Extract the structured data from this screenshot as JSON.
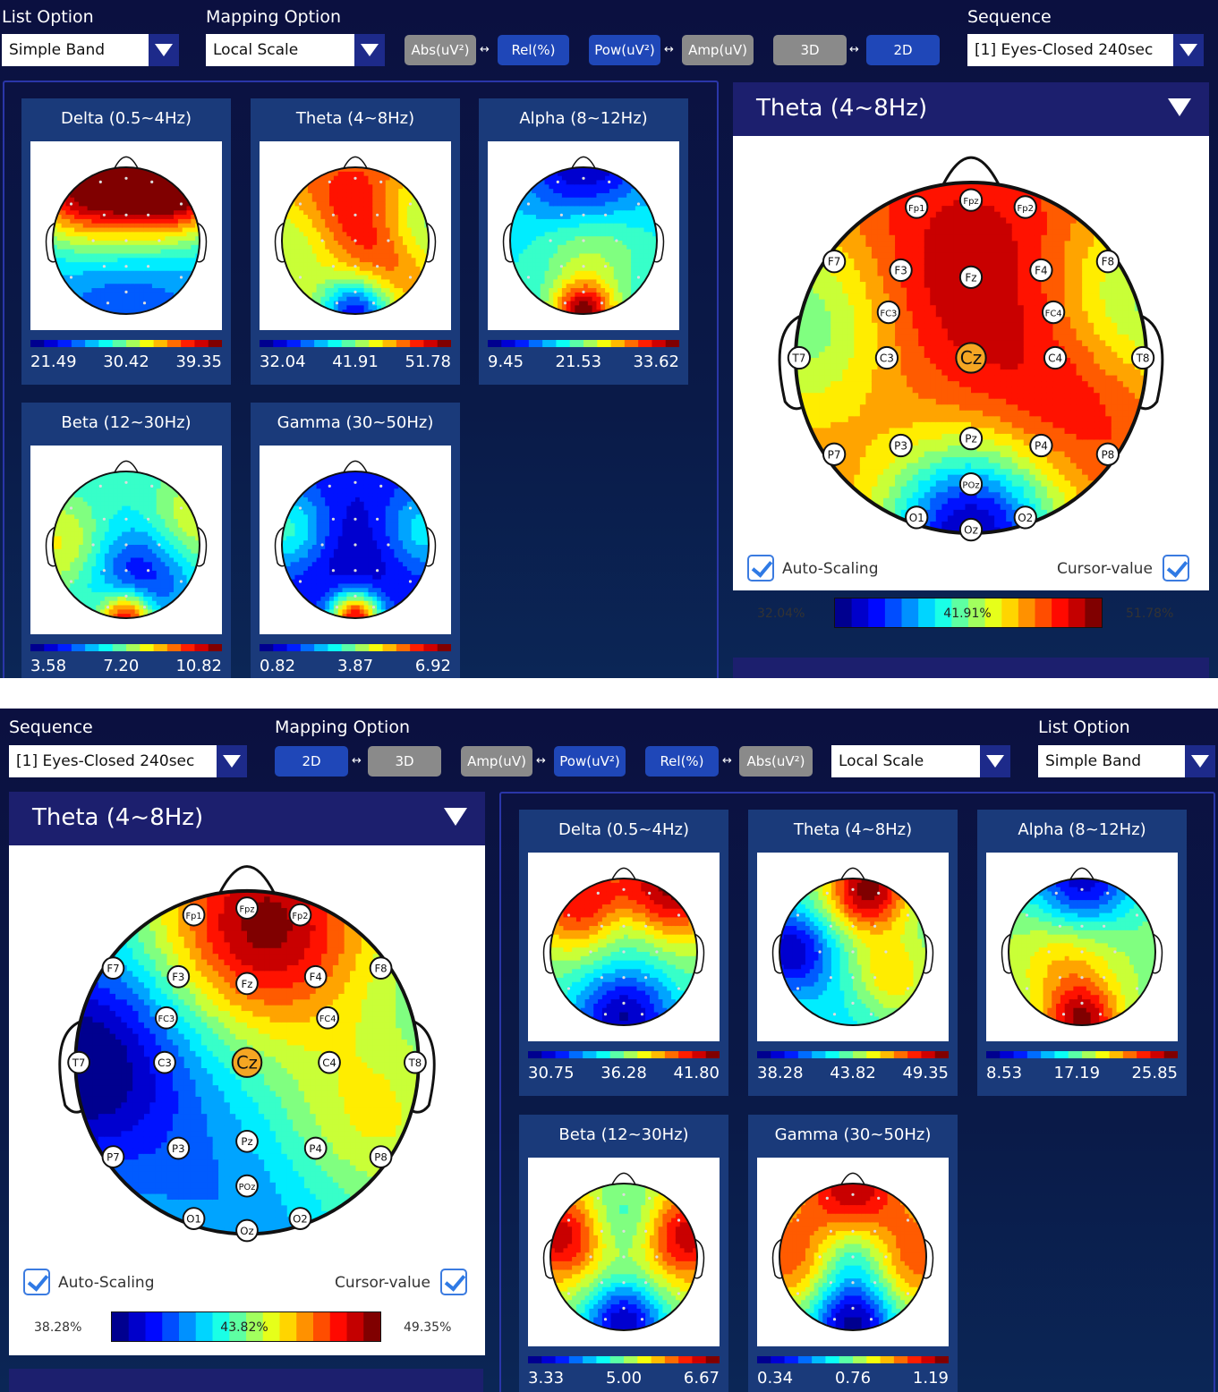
{
  "colors": {
    "panel_bg": "#0b1a4a",
    "toggle_on": "#1f47b8",
    "toggle_off": "#8a8a8a",
    "card_bg": "#1a3a7a",
    "big_header": "#1c1f6e",
    "jet": [
      "#00008f",
      "#0000ff",
      "#0080ff",
      "#00ffff",
      "#80ff80",
      "#ffff00",
      "#ff8000",
      "#ff0000",
      "#800000"
    ]
  },
  "screens": [
    {
      "labels": {
        "list_option": "List Option",
        "mapping_option": "Mapping Option",
        "sequence": "Sequence"
      },
      "list_option_value": "Simple Band",
      "mapping_option_value": "Local Scale",
      "sequence_value": "[1] Eyes-Closed 240sec",
      "toggles": {
        "abs": "Abs(uV²)",
        "rel": "Rel(%)",
        "pow": "Pow(uV²)",
        "amp": "Amp(uV)",
        "three_d": "3D",
        "two_d": "2D",
        "swap": "↔"
      },
      "bands": [
        {
          "name": "Delta (0.5~4Hz)",
          "min": "21.49",
          "mid": "30.42",
          "max": "39.35"
        },
        {
          "name": "Theta (4~8Hz)",
          "min": "32.04",
          "mid": "41.91",
          "max": "51.78"
        },
        {
          "name": "Alpha (8~12Hz)",
          "min": "9.45",
          "mid": "21.53",
          "max": "33.62"
        },
        {
          "name": "Beta (12~30Hz)",
          "min": "3.58",
          "mid": "7.20",
          "max": "10.82"
        },
        {
          "name": "Gamma (30~50Hz)",
          "min": "0.82",
          "mid": "3.87",
          "max": "6.92"
        }
      ],
      "detail": {
        "title": "Theta (4~8Hz)",
        "auto_scaling": "Auto-Scaling",
        "cursor_value": "Cursor-value",
        "min_pct": "32.04%",
        "cursor_pct": "41.91%",
        "max_pct": "51.78%",
        "center_electrode": "Cz"
      }
    },
    {
      "labels": {
        "list_option": "List Option",
        "mapping_option": "Mapping Option",
        "sequence": "Sequence"
      },
      "list_option_value": "Simple Band",
      "mapping_option_value": "Local Scale",
      "sequence_value": "[1] Eyes-Closed 240sec",
      "toggles": {
        "abs": "Abs(uV²)",
        "rel": "Rel(%)",
        "pow": "Pow(uV²)",
        "amp": "Amp(uV)",
        "three_d": "3D",
        "two_d": "2D",
        "swap": "↔"
      },
      "bands": [
        {
          "name": "Delta (0.5~4Hz)",
          "min": "30.75",
          "mid": "36.28",
          "max": "41.80"
        },
        {
          "name": "Theta (4~8Hz)",
          "min": "38.28",
          "mid": "43.82",
          "max": "49.35"
        },
        {
          "name": "Alpha (8~12Hz)",
          "min": "8.53",
          "mid": "17.19",
          "max": "25.85"
        },
        {
          "name": "Beta (12~30Hz)",
          "min": "3.33",
          "mid": "5.00",
          "max": "6.67"
        },
        {
          "name": "Gamma (30~50Hz)",
          "min": "0.34",
          "mid": "0.76",
          "max": "1.19"
        }
      ],
      "detail": {
        "title": "Theta (4~8Hz)",
        "auto_scaling": "Auto-Scaling",
        "cursor_value": "Cursor-value",
        "min_pct": "38.28%",
        "cursor_pct": "43.82%",
        "max_pct": "49.35%",
        "center_electrode": "Cz"
      }
    }
  ],
  "electrodes": [
    "Fpz",
    "Fp1",
    "Fp2",
    "F7",
    "F3",
    "Fz",
    "F4",
    "F8",
    "FC3",
    "FC4",
    "T7",
    "C3",
    "C4",
    "T8",
    "P7",
    "P3",
    "Pz",
    "P4",
    "P8",
    "POz",
    "O1",
    "Oz",
    "O2"
  ]
}
